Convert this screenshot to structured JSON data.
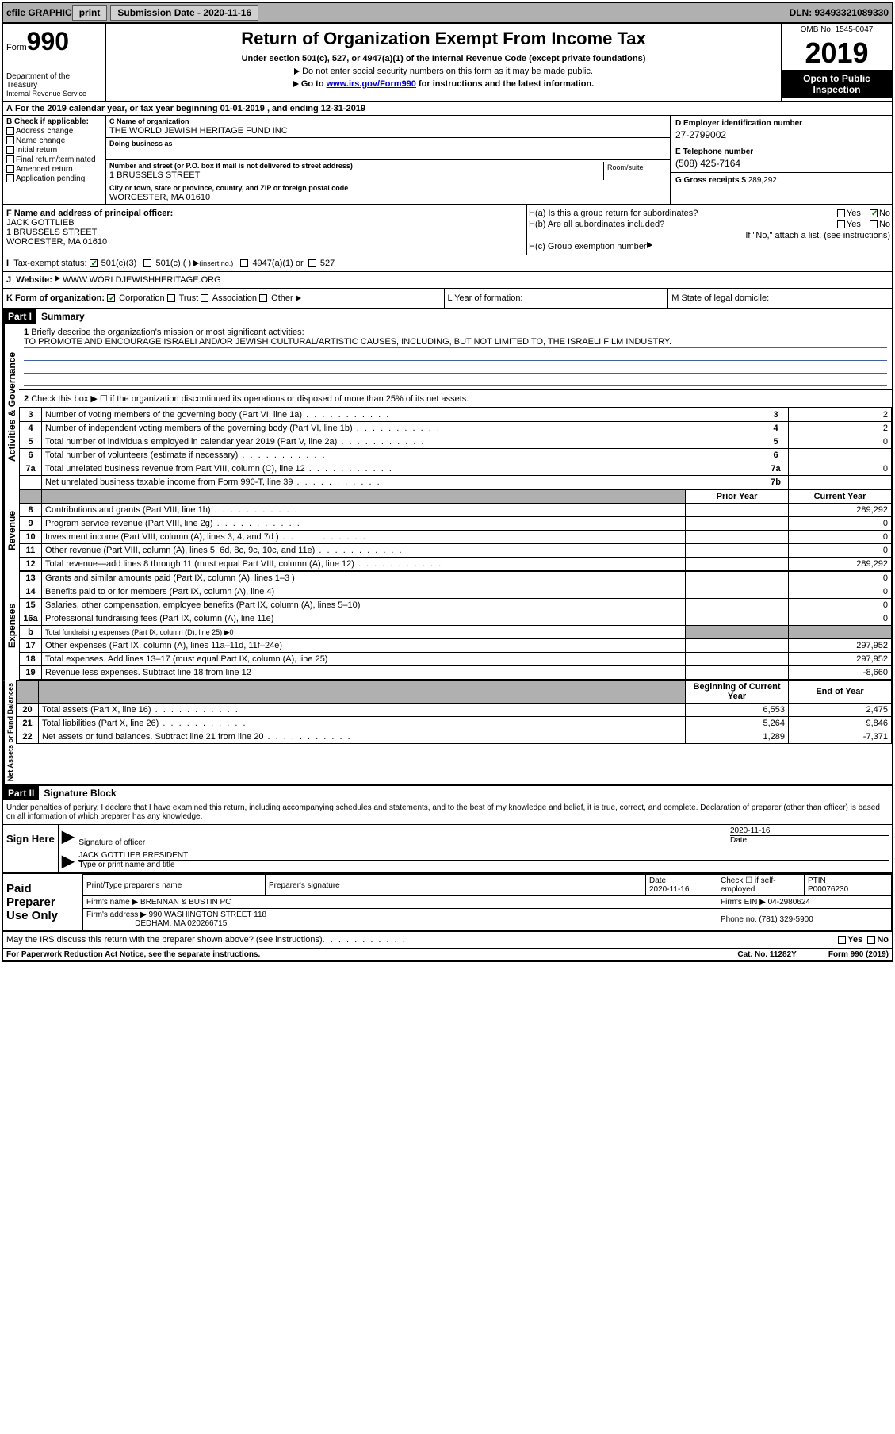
{
  "topbar": {
    "efile": "efile GRAPHIC",
    "print": "print",
    "subdate_lbl": "Submission Date - ",
    "subdate": "2020-11-16",
    "dln": "DLN: 93493321089330"
  },
  "header": {
    "form_lbl": "Form",
    "form_num": "990",
    "dept1": "Department of the Treasury",
    "dept2": "Internal Revenue Service",
    "title": "Return of Organization Exempt From Income Tax",
    "sub": "Under section 501(c), 527, or 4947(a)(1) of the Internal Revenue Code (except private foundations)",
    "note1": "Do not enter social security numbers on this form as it may be made public.",
    "note2_pre": "Go to ",
    "note2_link": "www.irs.gov/Form990",
    "note2_post": " for instructions and the latest information.",
    "omb": "OMB No. 1545-0047",
    "year": "2019",
    "open": "Open to Public Inspection"
  },
  "period": "For the 2019 calendar year, or tax year beginning 01-01-2019    , and ending 12-31-2019",
  "colB": {
    "lbl": "B Check if applicable:",
    "opts": [
      "Address change",
      "Name change",
      "Initial return",
      "Final return/terminated",
      "Amended return",
      "Application pending"
    ]
  },
  "C": {
    "name_lbl": "C Name of organization",
    "name": "THE WORLD JEWISH HERITAGE FUND INC",
    "dba_lbl": "Doing business as",
    "addr_lbl": "Number and street (or P.O. box if mail is not delivered to street address)",
    "addr": "1 BRUSSELS STREET",
    "room_lbl": "Room/suite",
    "city_lbl": "City or town, state or province, country, and ZIP or foreign postal code",
    "city": "WORCESTER, MA  01610"
  },
  "D": {
    "lbl": "D Employer identification number",
    "val": "27-2799002"
  },
  "E": {
    "lbl": "E Telephone number",
    "val": "(508) 425-7164"
  },
  "G": {
    "lbl": "G Gross receipts $",
    "val": "289,292"
  },
  "F": {
    "lbl": "F  Name and address of principal officer:",
    "name": "JACK GOTTLIEB",
    "addr1": "1 BRUSSELS STREET",
    "addr2": "WORCESTER, MA  01610"
  },
  "H": {
    "a": "H(a)  Is this a group return for subordinates?",
    "b": "H(b)  Are all subordinates included?",
    "bnote": "If \"No,\" attach a list. (see instructions)",
    "c": "H(c)  Group exemption number"
  },
  "I": {
    "lbl": "Tax-exempt status:",
    "o1": "501(c)(3)",
    "o2": "501(c) (  )",
    "o2n": "(insert no.)",
    "o3": "4947(a)(1) or",
    "o4": "527"
  },
  "J": {
    "lbl": "J",
    "lbl2": "Website:",
    "val": "WWW.WORLDJEWISHHERITAGE.ORG"
  },
  "K": {
    "lbl": "K Form of organization:",
    "o1": "Corporation",
    "o2": "Trust",
    "o3": "Association",
    "o4": "Other"
  },
  "L": "L Year of formation:",
  "M": "M State of legal domicile:",
  "part1": {
    "hdr": "Part I",
    "title": "Summary"
  },
  "summary": {
    "l1": "Briefly describe the organization's mission or most significant activities:",
    "mission": "TO PROMOTE AND ENCOURAGE ISRAELI AND/OR JEWISH CULTURAL/ARTISTIC CAUSES, INCLUDING, BUT NOT LIMITED TO, THE ISRAELI FILM INDUSTRY.",
    "l2": "Check this box ▶ ☐  if the organization discontinued its operations or disposed of more than 25% of its net assets.",
    "rows_ag": [
      {
        "n": "3",
        "t": "Number of voting members of the governing body (Part VI, line 1a)",
        "c": "3",
        "v": "2"
      },
      {
        "n": "4",
        "t": "Number of independent voting members of the governing body (Part VI, line 1b)",
        "c": "4",
        "v": "2"
      },
      {
        "n": "5",
        "t": "Total number of individuals employed in calendar year 2019 (Part V, line 2a)",
        "c": "5",
        "v": "0"
      },
      {
        "n": "6",
        "t": "Total number of volunteers (estimate if necessary)",
        "c": "6",
        "v": ""
      },
      {
        "n": "7a",
        "t": "Total unrelated business revenue from Part VIII, column (C), line 12",
        "c": "7a",
        "v": "0"
      },
      {
        "n": "",
        "t": "Net unrelated business taxable income from Form 990-T, line 39",
        "c": "7b",
        "v": ""
      }
    ],
    "hdr_prior": "Prior Year",
    "hdr_curr": "Current Year",
    "rows_rev": [
      {
        "n": "8",
        "t": "Contributions and grants (Part VIII, line 1h)",
        "p": "",
        "c": "289,292"
      },
      {
        "n": "9",
        "t": "Program service revenue (Part VIII, line 2g)",
        "p": "",
        "c": "0"
      },
      {
        "n": "10",
        "t": "Investment income (Part VIII, column (A), lines 3, 4, and 7d )",
        "p": "",
        "c": "0"
      },
      {
        "n": "11",
        "t": "Other revenue (Part VIII, column (A), lines 5, 6d, 8c, 9c, 10c, and 11e)",
        "p": "",
        "c": "0"
      },
      {
        "n": "12",
        "t": "Total revenue—add lines 8 through 11 (must equal Part VIII, column (A), line 12)",
        "p": "",
        "c": "289,292"
      }
    ],
    "rows_exp": [
      {
        "n": "13",
        "t": "Grants and similar amounts paid (Part IX, column (A), lines 1–3 )",
        "p": "",
        "c": "0"
      },
      {
        "n": "14",
        "t": "Benefits paid to or for members (Part IX, column (A), line 4)",
        "p": "",
        "c": "0"
      },
      {
        "n": "15",
        "t": "Salaries, other compensation, employee benefits (Part IX, column (A), lines 5–10)",
        "p": "",
        "c": "0"
      },
      {
        "n": "16a",
        "t": "Professional fundraising fees (Part IX, column (A), line 11e)",
        "p": "",
        "c": "0"
      },
      {
        "n": "b",
        "t": "Total fundraising expenses (Part IX, column (D), line 25) ▶0",
        "p": "grey",
        "c": "grey"
      },
      {
        "n": "17",
        "t": "Other expenses (Part IX, column (A), lines 11a–11d, 11f–24e)",
        "p": "",
        "c": "297,952"
      },
      {
        "n": "18",
        "t": "Total expenses. Add lines 13–17 (must equal Part IX, column (A), line 25)",
        "p": "",
        "c": "297,952"
      },
      {
        "n": "19",
        "t": "Revenue less expenses. Subtract line 18 from line 12",
        "p": "",
        "c": "-8,660"
      }
    ],
    "hdr_beg": "Beginning of Current Year",
    "hdr_end": "End of Year",
    "rows_net": [
      {
        "n": "20",
        "t": "Total assets (Part X, line 16)",
        "p": "6,553",
        "c": "2,475"
      },
      {
        "n": "21",
        "t": "Total liabilities (Part X, line 26)",
        "p": "5,264",
        "c": "9,846"
      },
      {
        "n": "22",
        "t": "Net assets or fund balances. Subtract line 21 from line 20",
        "p": "1,289",
        "c": "-7,371"
      }
    ]
  },
  "side": {
    "ag": "Activities & Governance",
    "rev": "Revenue",
    "exp": "Expenses",
    "net": "Net Assets or Fund Balances"
  },
  "part2": {
    "hdr": "Part II",
    "title": "Signature Block"
  },
  "sig": {
    "decl": "Under penalties of perjury, I declare that I have examined this return, including accompanying schedules and statements, and to the best of my knowledge and belief, it is true, correct, and complete. Declaration of preparer (other than officer) is based on all information of which preparer has any knowledge.",
    "here": "Sign Here",
    "sig_lbl": "Signature of officer",
    "date_lbl": "Date",
    "date": "2020-11-16",
    "name": "JACK GOTTLIEB  PRESIDENT",
    "name_lbl": "Type or print name and title"
  },
  "prep": {
    "lbl": "Paid Preparer Use Only",
    "r1": {
      "a": "Print/Type preparer's name",
      "b": "Preparer's signature",
      "c": "Date",
      "cdate": "2020-11-16",
      "d": "Check ☐ if self-employed",
      "e": "PTIN",
      "eval": "P00076230"
    },
    "r2": {
      "a": "Firm's name    ▶",
      "aval": "BRENNAN & BUSTIN PC",
      "b": "Firm's EIN ▶",
      "bval": "04-2980624"
    },
    "r3": {
      "a": "Firm's address ▶",
      "aval": "990 WASHINGTON STREET 118",
      "b": "Phone no.",
      "bval": "(781) 329-5900"
    },
    "r3b": "DEDHAM, MA  020266715"
  },
  "discuss": "May the IRS discuss this return with the preparer shown above? (see instructions)",
  "yes": "Yes",
  "no": "No",
  "footer": {
    "a": "For Paperwork Reduction Act Notice, see the separate instructions.",
    "b": "Cat. No. 11282Y",
    "c": "Form 990 (2019)"
  }
}
